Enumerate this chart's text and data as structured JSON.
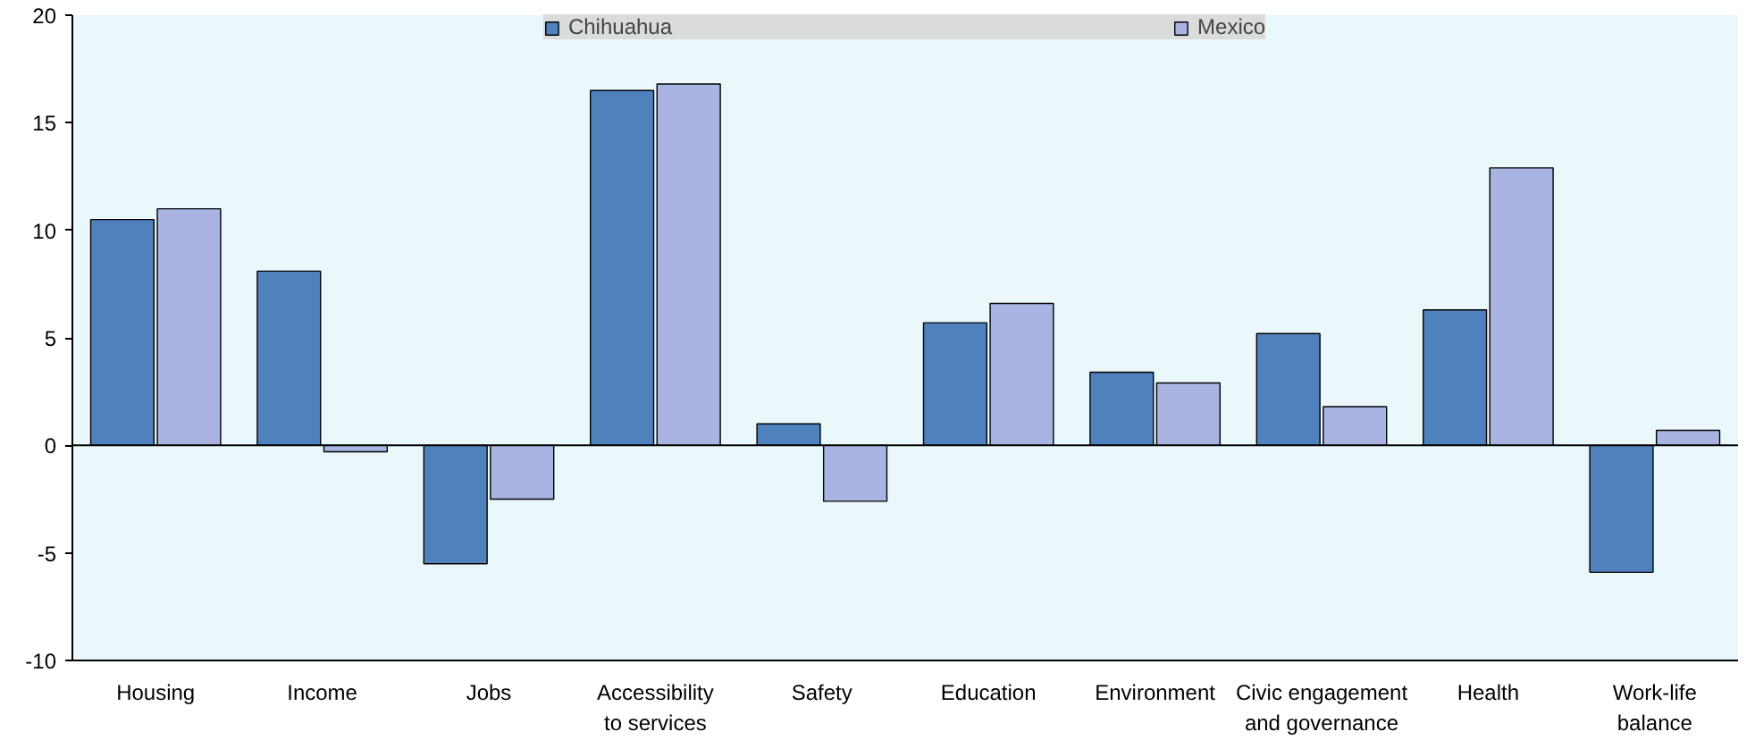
{
  "chart_data": {
    "type": "bar",
    "categories": [
      "Housing",
      "Income",
      "Jobs",
      "Accessibility to services",
      "Safety",
      "Education",
      "Environment",
      "Civic engagement and governance",
      "Health",
      "Work-life balance"
    ],
    "series": [
      {
        "name": "Chihuahua",
        "color": "#4f81bd",
        "values": [
          10.5,
          8.1,
          -5.5,
          16.5,
          1.0,
          5.7,
          3.4,
          5.2,
          6.3,
          -5.9
        ]
      },
      {
        "name": "Mexico",
        "color": "#a9b4e3",
        "values": [
          11.0,
          -0.3,
          -2.5,
          16.8,
          -2.6,
          6.6,
          2.9,
          1.8,
          12.9,
          0.7
        ]
      }
    ],
    "ylim": [
      -10,
      20
    ],
    "yticks": [
      -10,
      -5,
      0,
      5,
      10,
      15,
      20
    ],
    "ref_lines": [
      {
        "axis": "y",
        "value": 0,
        "color": "#000000"
      }
    ],
    "grid": false,
    "legend": "top"
  }
}
